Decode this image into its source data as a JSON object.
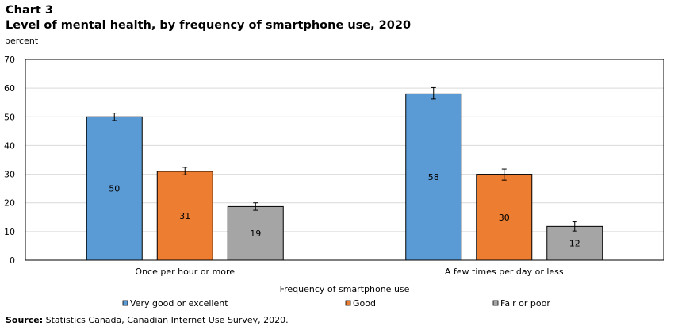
{
  "chart_data": {
    "type": "bar",
    "title_line1": "Chart 3",
    "title_line2": "Level of mental health, by frequency of smartphone use, 2020",
    "ylabel": "percent",
    "xlabel": "Frequency of smartphone use",
    "ylim": [
      0,
      70
    ],
    "yticks": [
      0,
      10,
      20,
      30,
      40,
      50,
      60,
      70
    ],
    "grid": true,
    "legend_position": "bottom",
    "categories": [
      "Once per hour or more",
      "A few times per day or less"
    ],
    "series": [
      {
        "name": "Very good or excellent",
        "color": "#5b9bd5",
        "values": [
          50,
          58
        ],
        "labels": [
          "50",
          "58"
        ],
        "err_low": [
          48.7,
          56.2
        ],
        "err_high": [
          51.3,
          60.2
        ]
      },
      {
        "name": "Good",
        "color": "#ed7d31",
        "values": [
          31,
          30
        ],
        "labels": [
          "31",
          "30"
        ],
        "err_low": [
          29.8,
          27.9
        ],
        "err_high": [
          32.4,
          31.8
        ]
      },
      {
        "name": "Fair or poor",
        "color": "#a5a5a5",
        "values": [
          18.7,
          11.8
        ],
        "labels": [
          "19",
          "12"
        ],
        "err_low": [
          17.4,
          10.2
        ],
        "err_high": [
          20.0,
          13.4
        ]
      }
    ]
  },
  "source": {
    "label": "Source:",
    "text": " Statistics Canada, Canadian Internet Use Survey, 2020."
  }
}
